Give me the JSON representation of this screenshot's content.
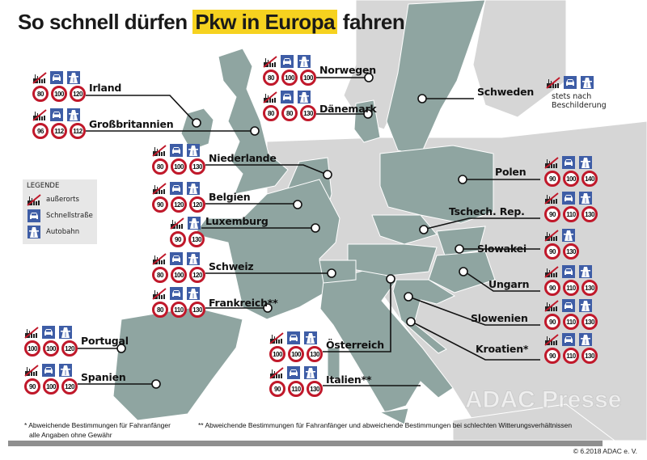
{
  "title": {
    "before": "So schnell dürfen",
    "highlight": "Pkw in Europa",
    "after": "fahren"
  },
  "colors": {
    "eu_land": "#8fa5a1",
    "other_land": "#d6d6d6",
    "sea": "#ffffff",
    "highlight": "#f6d21f",
    "sign_red": "#c0182a",
    "icon_blue": "#3e5da6"
  },
  "legend": {
    "title": "LEGENDE",
    "items": [
      {
        "icon": "outside-town-icon",
        "label": "außerorts"
      },
      {
        "icon": "expressway-car-icon",
        "label": "Schnellstraße"
      },
      {
        "icon": "motorway-icon",
        "label": "Autobahn"
      }
    ]
  },
  "countries": [
    {
      "name": "Irland",
      "limits": [
        "80",
        "100",
        "120"
      ]
    },
    {
      "name": "Großbritannien",
      "limits": [
        "96",
        "112",
        "112"
      ]
    },
    {
      "name": "Norwegen",
      "limits": [
        "80",
        "100",
        "100"
      ]
    },
    {
      "name": "Dänemark",
      "limits": [
        "80",
        "80",
        "130"
      ]
    },
    {
      "name": "Niederlande",
      "limits": [
        "80",
        "100",
        "130"
      ]
    },
    {
      "name": "Belgien",
      "limits": [
        "90",
        "120",
        "120"
      ]
    },
    {
      "name": "Luxemburg",
      "limits": [
        "90",
        "130"
      ]
    },
    {
      "name": "Schweiz",
      "limits": [
        "80",
        "100",
        "120"
      ]
    },
    {
      "name": "Frankreich**",
      "limits": [
        "80",
        "110",
        "130"
      ]
    },
    {
      "name": "Portugal",
      "limits": [
        "100",
        "100",
        "120"
      ]
    },
    {
      "name": "Spanien",
      "limits": [
        "90",
        "100",
        "120"
      ]
    },
    {
      "name": "Österreich",
      "limits": [
        "100",
        "100",
        "130"
      ]
    },
    {
      "name": "Italien**",
      "limits": [
        "90",
        "110",
        "130"
      ]
    },
    {
      "name": "Schweden",
      "limits": [],
      "note": "stets nach Beschilderung"
    },
    {
      "name": "Polen",
      "limits": [
        "90",
        "100",
        "140"
      ]
    },
    {
      "name": "Tschech. Rep.",
      "limits": [
        "90",
        "110",
        "130"
      ]
    },
    {
      "name": "Slowakei",
      "limits": [
        "90",
        "130"
      ]
    },
    {
      "name": "Ungarn",
      "limits": [
        "90",
        "110",
        "130"
      ]
    },
    {
      "name": "Slowenien",
      "limits": [
        "90",
        "110",
        "130"
      ]
    },
    {
      "name": "Kroatien*",
      "limits": [
        "90",
        "110",
        "130"
      ]
    }
  ],
  "footnotes": {
    "single": "* Abweichende Bestimmungen für Fahranfänger",
    "double": "** Abweichende Bestimmungen für Fahranfänger und abweichende Bestimmungen bei schlechten Witterungsverhältnissen",
    "disclaimer": "alle Angaben ohne Gewähr"
  },
  "watermark": "ADAC Presse",
  "copyright": "© 6.2018 ADAC e. V."
}
